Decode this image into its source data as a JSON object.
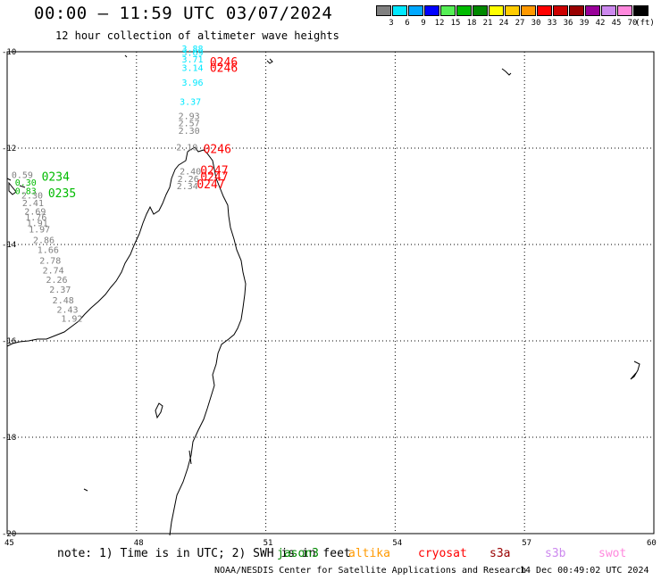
{
  "header": {
    "title": "00:00 — 11:59 UTC 03/07/2024",
    "subtitle": "12 hour collection of altimeter wave heights"
  },
  "color_scale": {
    "unit": "(ft)",
    "bins": [
      {
        "color": "#808080",
        "label": "3"
      },
      {
        "color": "#00e8ff",
        "label": "6"
      },
      {
        "color": "#00a8ff",
        "label": "9"
      },
      {
        "color": "#0000ff",
        "label": "12"
      },
      {
        "color": "#55ee55",
        "label": "15"
      },
      {
        "color": "#00bb00",
        "label": "18"
      },
      {
        "color": "#008800",
        "label": "21"
      },
      {
        "color": "#ffff00",
        "label": "24"
      },
      {
        "color": "#ffcc00",
        "label": "27"
      },
      {
        "color": "#ff9900",
        "label": "30"
      },
      {
        "color": "#ff0000",
        "label": "33"
      },
      {
        "color": "#cc0000",
        "label": "36"
      },
      {
        "color": "#990000",
        "label": "39"
      },
      {
        "color": "#990099",
        "label": "42"
      },
      {
        "color": "#cc88ee",
        "label": "45"
      },
      {
        "color": "#ff88dd",
        "label": "70"
      },
      {
        "color": "#000000",
        "label": ""
      }
    ]
  },
  "axes": {
    "lat_labels": [
      "-10",
      "-12",
      "-14",
      "-16",
      "-18",
      "-20"
    ],
    "lon_labels": [
      "45",
      "48",
      "51",
      "54",
      "57",
      "60"
    ]
  },
  "observations": [
    {
      "value": "3.88",
      "color": "#00e8ff",
      "lon": 49.05,
      "lat": -10.0
    },
    {
      "value": "3.69",
      "color": "#00e8ff",
      "lon": 49.05,
      "lat": -10.08
    },
    {
      "value": "3.71",
      "color": "#00e8ff",
      "lon": 49.05,
      "lat": -10.22
    },
    {
      "value": "3.14",
      "color": "#00e8ff",
      "lon": 49.05,
      "lat": -10.4
    },
    {
      "value": "3.96",
      "color": "#00e8ff",
      "lon": 49.05,
      "lat": -10.7
    },
    {
      "value": "3.37",
      "color": "#00e8ff",
      "lon": 49.0,
      "lat": -11.1
    },
    {
      "value": "2.93",
      "color": "#808080",
      "lon": 48.97,
      "lat": -11.4
    },
    {
      "value": "2.57",
      "color": "#808080",
      "lon": 48.97,
      "lat": -11.55
    },
    {
      "value": "2.30",
      "color": "#808080",
      "lon": 48.97,
      "lat": -11.7
    },
    {
      "value": "2.10",
      "color": "#808080",
      "lon": 48.92,
      "lat": -12.05
    },
    {
      "value": "2.40",
      "color": "#808080",
      "lon": 49.0,
      "lat": -12.55
    },
    {
      "value": "2.26",
      "color": "#808080",
      "lon": 48.95,
      "lat": -12.7
    },
    {
      "value": "2.34",
      "color": "#808080",
      "lon": 48.93,
      "lat": -12.85
    },
    {
      "value": "0.59",
      "color": "#808080",
      "lon": 45.1,
      "lat": -12.62
    },
    {
      "value": "0.30",
      "color": "#00bb00",
      "lon": 45.18,
      "lat": -12.78
    },
    {
      "value": "0.83",
      "color": "#00bb00",
      "lon": 45.18,
      "lat": -12.95
    },
    {
      "value": "2.30",
      "color": "#808080",
      "lon": 45.33,
      "lat": -13.05
    },
    {
      "value": "2.41",
      "color": "#808080",
      "lon": 45.35,
      "lat": -13.2
    },
    {
      "value": "2.69",
      "color": "#808080",
      "lon": 45.4,
      "lat": -13.38
    },
    {
      "value": "1.76",
      "color": "#808080",
      "lon": 45.42,
      "lat": -13.5
    },
    {
      "value": "1.91",
      "color": "#808080",
      "lon": 45.45,
      "lat": -13.62
    },
    {
      "value": "1.97",
      "color": "#808080",
      "lon": 45.5,
      "lat": -13.75
    },
    {
      "value": "2.86",
      "color": "#808080",
      "lon": 45.6,
      "lat": -13.97
    },
    {
      "value": "1.66",
      "color": "#808080",
      "lon": 45.7,
      "lat": -14.18
    },
    {
      "value": "2.78",
      "color": "#808080",
      "lon": 45.75,
      "lat": -14.4
    },
    {
      "value": "2.74",
      "color": "#808080",
      "lon": 45.82,
      "lat": -14.6
    },
    {
      "value": "2.26",
      "color": "#808080",
      "lon": 45.9,
      "lat": -14.8
    },
    {
      "value": "2.37",
      "color": "#808080",
      "lon": 45.98,
      "lat": -15.0
    },
    {
      "value": "2.48",
      "color": "#808080",
      "lon": 46.05,
      "lat": -15.22
    },
    {
      "value": "2.43",
      "color": "#808080",
      "lon": 46.15,
      "lat": -15.42
    },
    {
      "value": "1.92",
      "color": "#808080",
      "lon": 46.25,
      "lat": -15.6
    }
  ],
  "time_labels": [
    {
      "text": "0246",
      "color": "#ff0000",
      "lon": 49.7,
      "lat": -10.3
    },
    {
      "text": "0246",
      "color": "#ff0000",
      "lon": 49.7,
      "lat": -10.42
    },
    {
      "text": "0246",
      "color": "#ff0000",
      "lon": 49.55,
      "lat": -12.1
    },
    {
      "text": "0247",
      "color": "#ff0000",
      "lon": 49.48,
      "lat": -12.55
    },
    {
      "text": "0247",
      "color": "#ff0000",
      "lon": 49.48,
      "lat": -12.68
    },
    {
      "text": "0247",
      "color": "#ff0000",
      "lon": 49.4,
      "lat": -12.83
    },
    {
      "text": "0234",
      "color": "#00bb00",
      "lon": 45.8,
      "lat": -12.68
    },
    {
      "text": "0235",
      "color": "#00bb00",
      "lon": 45.95,
      "lat": -13.02
    }
  ],
  "footer": {
    "note": "note:  1) Time is in UTC;  2) SWH is in feet",
    "satellites": [
      {
        "name": "jason3",
        "color": "#008800"
      },
      {
        "name": "altika",
        "color": "#ff9900"
      },
      {
        "name": "cryosat",
        "color": "#ff0000"
      },
      {
        "name": "s3a",
        "color": "#990000"
      },
      {
        "name": "s3b",
        "color": "#cc88ee"
      },
      {
        "name": "swot",
        "color": "#ff88dd"
      }
    ],
    "credit": "NOAA/NESDIS Center for Satellite Applications and Research",
    "timestamp": "14 Dec 00:49:02 UTC 2024"
  }
}
